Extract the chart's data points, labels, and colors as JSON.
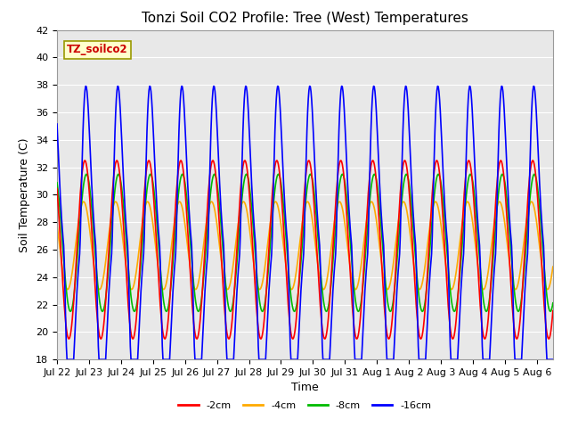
{
  "title": "Tonzi Soil CO2 Profile: Tree (West) Temperatures",
  "ylabel": "Soil Temperature (C)",
  "xlabel": "Time",
  "ylim": [
    18,
    42
  ],
  "yticks": [
    18,
    20,
    22,
    24,
    26,
    28,
    30,
    32,
    34,
    36,
    38,
    40,
    42
  ],
  "series_labels": [
    "-2cm",
    "-4cm",
    "-8cm",
    "-16cm"
  ],
  "series_colors": [
    "#ff0000",
    "#ffaa00",
    "#00bb00",
    "#0000ff"
  ],
  "series_linewidths": [
    1.2,
    1.2,
    1.2,
    1.2
  ],
  "bg_color": "#e8e8e8",
  "fig_bg_color": "#ffffff",
  "legend_label": "TZ_soilco2",
  "legend_label_color": "#cc0000",
  "legend_box_color": "#ffffcc",
  "tick_labels": [
    "Jul 22",
    "Jul 23",
    "Jul 24",
    "Jul 25",
    "Jul 26",
    "Jul 27",
    "Jul 28",
    "Jul 29",
    "Jul 30",
    "Jul 31",
    "Aug 1",
    "Aug 2",
    "Aug 3",
    "Aug 4",
    "Aug 5",
    "Aug 6"
  ],
  "title_fontsize": 11,
  "axis_label_fontsize": 9,
  "tick_fontsize": 8
}
